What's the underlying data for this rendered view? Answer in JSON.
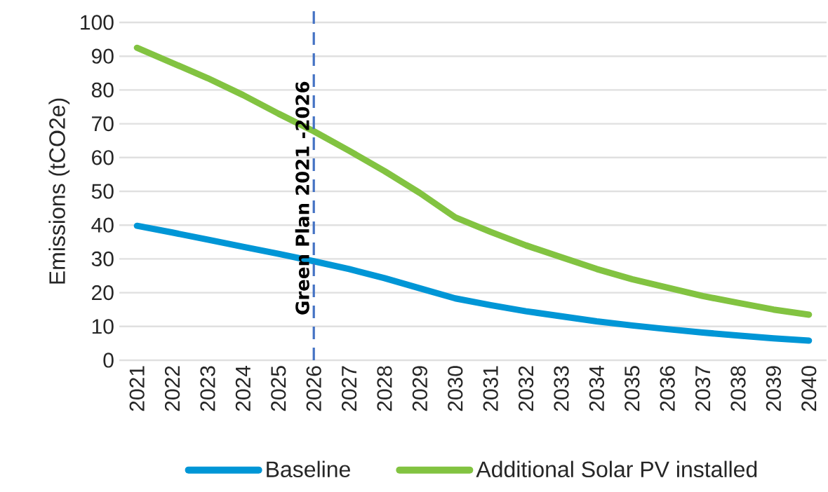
{
  "chart_data": {
    "type": "line",
    "ylabel": "Emissions (tCO2e)",
    "x": [
      2021,
      2022,
      2023,
      2024,
      2025,
      2026,
      2027,
      2028,
      2029,
      2030,
      2031,
      2032,
      2033,
      2034,
      2035,
      2036,
      2037,
      2038,
      2039,
      2040
    ],
    "series": [
      {
        "name": "Baseline",
        "color": "#0096d6",
        "values": [
          39.8,
          37.8,
          35.7,
          33.6,
          31.5,
          29.3,
          27,
          24.3,
          21.3,
          18.3,
          16.3,
          14.5,
          13,
          11.5,
          10.3,
          9.2,
          8.2,
          7.3,
          6.5,
          5.8
        ]
      },
      {
        "name": "Additional Solar PV installed",
        "color": "#82c341",
        "values": [
          92.5,
          88,
          83.5,
          78.5,
          73,
          67.8,
          62,
          56,
          49.5,
          42.3,
          38,
          34,
          30.5,
          27,
          24,
          21.5,
          19,
          17,
          15,
          13.5
        ]
      }
    ],
    "xlim": [
      2020.5,
      2040.5
    ],
    "xticks": [
      2021,
      2022,
      2023,
      2024,
      2025,
      2026,
      2027,
      2028,
      2029,
      2030,
      2031,
      2032,
      2033,
      2034,
      2035,
      2036,
      2037,
      2038,
      2039,
      2040
    ],
    "ylim": [
      0,
      100
    ],
    "yticks": [
      0,
      10,
      20,
      30,
      40,
      50,
      60,
      70,
      80,
      90,
      100
    ],
    "ref_lines": [
      {
        "axis": "x",
        "value": 2026,
        "label": "Green Plan 2021 -2026",
        "color": "#4472c4",
        "line_style": "dashed"
      }
    ],
    "grid": "y",
    "legend": "bottom",
    "marker": "none",
    "line_style": "solid"
  }
}
